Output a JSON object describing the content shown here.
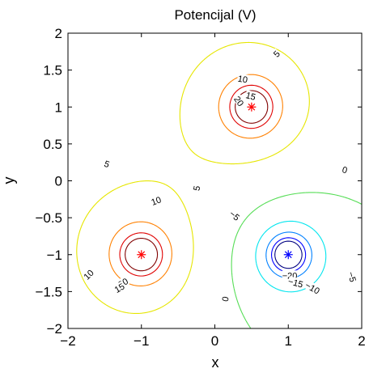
{
  "chart_data": {
    "type": "contour",
    "title": "Potencijal (V)",
    "xlabel": "x",
    "ylabel": "y",
    "xlim": [
      -2,
      2
    ],
    "ylim": [
      -2,
      2
    ],
    "x_ticks": [
      -2,
      -1,
      0,
      1,
      2
    ],
    "y_ticks": [
      -2,
      -1.5,
      -1,
      -0.5,
      0,
      0.5,
      1,
      1.5,
      2
    ],
    "x_tick_labels": [
      "−2",
      "−1",
      "0",
      "1",
      "2"
    ],
    "y_tick_labels": [
      "−2",
      "−1.5",
      "−1",
      "−0.5",
      "0",
      "0.5",
      "1",
      "1.5",
      "2"
    ],
    "charges": [
      {
        "x": 0.5,
        "y": 1,
        "sign": "positive",
        "color": "#ff0000"
      },
      {
        "x": -1,
        "y": -1,
        "sign": "positive",
        "color": "#ff0000"
      },
      {
        "x": 1,
        "y": -1,
        "sign": "negative",
        "color": "#0000ff"
      }
    ],
    "contour_levels": [
      -20,
      -15,
      -10,
      -5,
      0,
      5,
      10,
      15,
      20
    ],
    "level_colors": {
      "-20": "#000080",
      "-15": "#0000ff",
      "-10": "#0080ff",
      "-5": "#00e5ee",
      "0": "#55dd55",
      "5": "#e6e600",
      "10": "#ff8000",
      "15": "#e00000",
      "20": "#800000"
    },
    "contour_labels": [
      {
        "text": "5",
        "x": 0.84,
        "y": 1.72,
        "rot": 45
      },
      {
        "text": "5",
        "x": -1.47,
        "y": 0.23,
        "rot": -20
      },
      {
        "text": "5",
        "x": -0.25,
        "y": -0.1,
        "rot": 80
      },
      {
        "text": "10",
        "x": 0.38,
        "y": 1.38,
        "rot": -10
      },
      {
        "text": "20",
        "x": 0.33,
        "y": 1.08,
        "rot": -55
      },
      {
        "text": "15",
        "x": 0.49,
        "y": 1.15,
        "rot": -15
      },
      {
        "text": "10",
        "x": -0.8,
        "y": -0.27,
        "rot": 20
      },
      {
        "text": "10",
        "x": -1.72,
        "y": -1.27,
        "rot": 45
      },
      {
        "text": "20",
        "x": -1.25,
        "y": -1.38,
        "rot": 30
      },
      {
        "text": "15",
        "x": -1.3,
        "y": -1.45,
        "rot": 30
      },
      {
        "text": "0",
        "x": 1.77,
        "y": 0.15,
        "rot": -15
      },
      {
        "text": "0",
        "x": 0.14,
        "y": -1.6,
        "rot": 80
      },
      {
        "text": "−5",
        "x": 0.27,
        "y": -0.47,
        "rot": -40
      },
      {
        "text": "−5",
        "x": 1.87,
        "y": -1.3,
        "rot": -75
      },
      {
        "text": "−20",
        "x": 1.02,
        "y": -1.28,
        "rot": 0
      },
      {
        "text": "−15",
        "x": 1.1,
        "y": -1.38,
        "rot": -15
      },
      {
        "text": "−10",
        "x": 1.33,
        "y": -1.45,
        "rot": -30
      }
    ]
  }
}
